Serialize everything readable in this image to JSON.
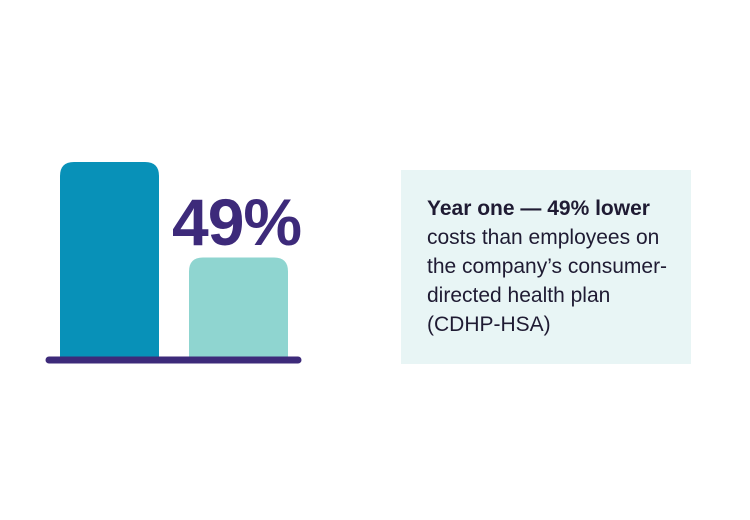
{
  "chart_data": {
    "type": "bar",
    "categories": [
      "",
      ""
    ],
    "values": [
      100,
      51
    ],
    "ylim": [
      0,
      100
    ],
    "colors": [
      "#0891b8",
      "#8fd5d0"
    ],
    "baseline_color": "#3d2a7a",
    "annotation": "49%"
  },
  "callout": {
    "lead": "Year one — 49% lower",
    "body": "costs than employees on the company’s consumer-directed health plan (CDHP-HSA)"
  },
  "colors": {
    "stat_text": "#3d2a7a",
    "callout_background": "#e8f5f5",
    "callout_text": "#1f1b33"
  }
}
